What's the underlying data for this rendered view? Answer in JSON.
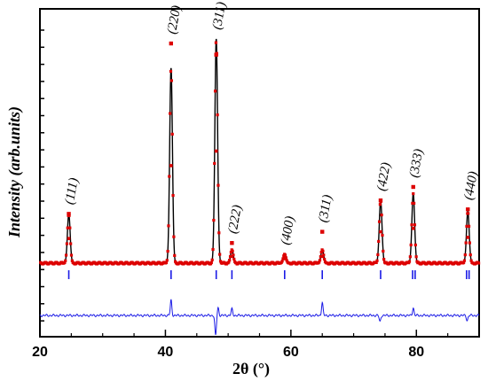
{
  "chart_data": {
    "type": "line",
    "xlabel": "2θ (°)",
    "ylabel": "Intensity (arb.units)",
    "xlim": [
      20,
      90
    ],
    "x_ticks": [
      20,
      40,
      60,
      80
    ],
    "x_tick_labels": [
      "20",
      "40",
      "60",
      "80"
    ],
    "peaks": [
      {
        "label": "(111)",
        "x": 24.6,
        "obs": 0.22,
        "calc": 0.22
      },
      {
        "label": "(220)",
        "x": 40.9,
        "obs": 0.98,
        "calc": 0.87
      },
      {
        "label": "(311)",
        "x": 48.1,
        "obs": 0.93,
        "calc": 1.0
      },
      {
        "label": "(222)",
        "x": 50.6,
        "obs": 0.09,
        "calc": 0.06
      },
      {
        "label": "(400)",
        "x": 59.0,
        "obs": 0.03,
        "calc": 0.04
      },
      {
        "label": "(311)",
        "x": 65.0,
        "obs": 0.14,
        "calc": 0.06
      },
      {
        "label": "(422)",
        "x": 74.3,
        "obs": 0.28,
        "calc": 0.28
      },
      {
        "label": "(333)",
        "x": 79.5,
        "obs": 0.34,
        "calc": 0.31
      },
      {
        "label": "(440)",
        "x": 88.2,
        "obs": 0.24,
        "calc": 0.23
      }
    ],
    "bragg_positions": [
      24.6,
      40.9,
      48.1,
      50.6,
      59.0,
      65.0,
      74.3,
      79.4,
      79.8,
      88.0,
      88.4
    ],
    "difference_features": [
      {
        "x": 40.9,
        "v": 0.12
      },
      {
        "x": 48.0,
        "v": -0.16
      },
      {
        "x": 48.4,
        "v": 0.06
      },
      {
        "x": 50.6,
        "v": 0.05
      },
      {
        "x": 65.0,
        "v": 0.1
      },
      {
        "x": 74.2,
        "v": -0.05
      },
      {
        "x": 79.5,
        "v": 0.06
      },
      {
        "x": 88.1,
        "v": -0.04
      }
    ],
    "series_colors": {
      "observed": "#dd0000",
      "calculated": "#000000",
      "bragg": "#1a1ae6",
      "difference": "#1a1ae6"
    }
  }
}
